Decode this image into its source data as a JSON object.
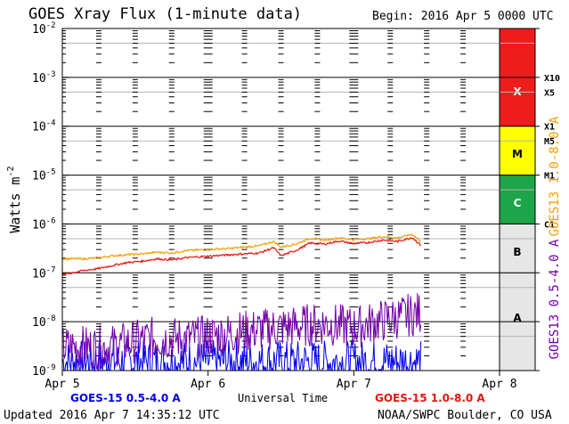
{
  "chart_data": {
    "type": "line",
    "title": "GOES Xray Flux (1-minute data)",
    "begin_label": "Begin:  2016 Apr 5 0000 UTC",
    "ylabel": "Watts m",
    "ylabel_exponent": "-2",
    "xlabel": "Universal Time",
    "yscale": "log",
    "ylim": [
      1e-09,
      0.01
    ],
    "y_ticks": [
      {
        "base": "10",
        "exp": "-2"
      },
      {
        "base": "10",
        "exp": "-3"
      },
      {
        "base": "10",
        "exp": "-4"
      },
      {
        "base": "10",
        "exp": "-5"
      },
      {
        "base": "10",
        "exp": "-6"
      },
      {
        "base": "10",
        "exp": "-7"
      },
      {
        "base": "10",
        "exp": "-8"
      },
      {
        "base": "10",
        "exp": "-9"
      }
    ],
    "x_unit": "days since 2016 Apr 5 0000 UTC",
    "xlim": [
      0,
      3
    ],
    "x_ticks": [
      {
        "label": "Apr 5",
        "value": 0
      },
      {
        "label": "Apr 6",
        "value": 1
      },
      {
        "label": "Apr 7",
        "value": 2
      },
      {
        "label": "Apr 8",
        "value": 3
      }
    ],
    "flare_classes": [
      {
        "label": "X",
        "lower": 0.0001,
        "upper": 0.01,
        "color": "#ee1c1c"
      },
      {
        "label": "M",
        "lower": 1e-05,
        "upper": 0.0001,
        "color": "#ffff00"
      },
      {
        "label": "C",
        "lower": 1e-06,
        "upper": 1e-05,
        "color": "#1ea54a"
      },
      {
        "label": "B",
        "lower": 1e-07,
        "upper": 1e-06,
        "color": "#e6e6e6"
      },
      {
        "label": "A",
        "lower": 1e-09,
        "upper": 1e-07,
        "color": "#e6e6e6"
      }
    ],
    "class_thresholds": [
      {
        "label": "X10",
        "value": 0.001
      },
      {
        "label": "X5",
        "value": 0.0005
      },
      {
        "label": "X1",
        "value": 0.0001
      },
      {
        "label": "M5",
        "value": 5e-05
      },
      {
        "label": "M1",
        "value": 1e-05
      },
      {
        "label": "C1",
        "value": 1e-06
      }
    ],
    "series": [
      {
        "name": "GOES-15 1.0-8.0 A",
        "color": "#e8160c",
        "x": [
          0,
          0.15,
          0.25,
          0.35,
          0.45,
          0.55,
          0.65,
          0.75,
          0.85,
          0.95,
          1.05,
          1.15,
          1.25,
          1.35,
          1.45,
          1.5,
          1.6,
          1.7,
          1.8,
          1.9,
          2.0,
          2.1,
          2.2,
          2.3,
          2.4,
          2.46
        ],
        "y": [
          9e-08,
          1.1e-07,
          1.2e-07,
          1.4e-07,
          1.6e-07,
          1.7e-07,
          1.9e-07,
          1.8e-07,
          2e-07,
          2.1e-07,
          2.2e-07,
          2.3e-07,
          2.4e-07,
          2.5e-07,
          3.2e-07,
          2.2e-07,
          2.8e-07,
          4e-07,
          3.8e-07,
          4.4e-07,
          3.9e-07,
          4.1e-07,
          4.6e-07,
          4.3e-07,
          5.2e-07,
          3.6e-07
        ]
      },
      {
        "name": "GOES-15 0.5-4.0 A",
        "color": "#0000f0",
        "x": [
          0,
          0.3,
          0.6,
          0.9,
          1.2,
          1.5,
          1.8,
          2.0,
          2.2,
          2.46
        ],
        "y": [
          1e-09,
          1e-09,
          1e-09,
          1e-09,
          1e-09,
          1e-09,
          1e-09,
          1e-09,
          1e-09,
          1e-09
        ]
      },
      {
        "name": "GOES13 1.0-8.0 A",
        "color": "#f0a000",
        "x": [
          0,
          0.15,
          0.25,
          0.35,
          0.45,
          0.55,
          0.65,
          0.75,
          0.85,
          0.95,
          1.05,
          1.15,
          1.25,
          1.35,
          1.45,
          1.5,
          1.6,
          1.7,
          1.8,
          1.9,
          2.0,
          2.1,
          2.2,
          2.3,
          2.4,
          2.46
        ],
        "y": [
          1.9e-07,
          1.9e-07,
          2e-07,
          2.2e-07,
          2.3e-07,
          2.4e-07,
          2.6e-07,
          2.5e-07,
          2.8e-07,
          2.9e-07,
          3e-07,
          3.1e-07,
          3.3e-07,
          3.5e-07,
          4.3e-07,
          3.3e-07,
          3.8e-07,
          5e-07,
          4.6e-07,
          5.1e-07,
          4.7e-07,
          4.9e-07,
          5.4e-07,
          5.1e-07,
          6e-07,
          4.4e-07
        ]
      },
      {
        "name": "GOES13 0.5-4.0 A",
        "color": "#7000a8",
        "x": [
          0,
          0.3,
          0.6,
          0.9,
          1.2,
          1.5,
          1.8,
          2.0,
          2.2,
          2.46
        ],
        "y": [
          2e-09,
          2e-09,
          3e-09,
          3e-09,
          4e-09,
          5e-09,
          6e-09,
          5e-09,
          7e-09,
          1e-08
        ]
      }
    ],
    "legend": {
      "bottom_left": "GOES-15 0.5-4.0 A",
      "bottom_right": "GOES-15 1.0-8.0 A",
      "right_vertical_top": "GOES13 1.0-8.0 A",
      "right_vertical_bottom": "GOES13 0.5-4.0 A"
    }
  },
  "footer": {
    "updated": "Updated 2016 Apr  7 14:35:12 UTC",
    "source": "NOAA/SWPC Boulder, CO USA"
  },
  "colors": {
    "plot_border": "#000000",
    "grid_major": "#000000",
    "grid_minor": "#b4b4b4"
  }
}
